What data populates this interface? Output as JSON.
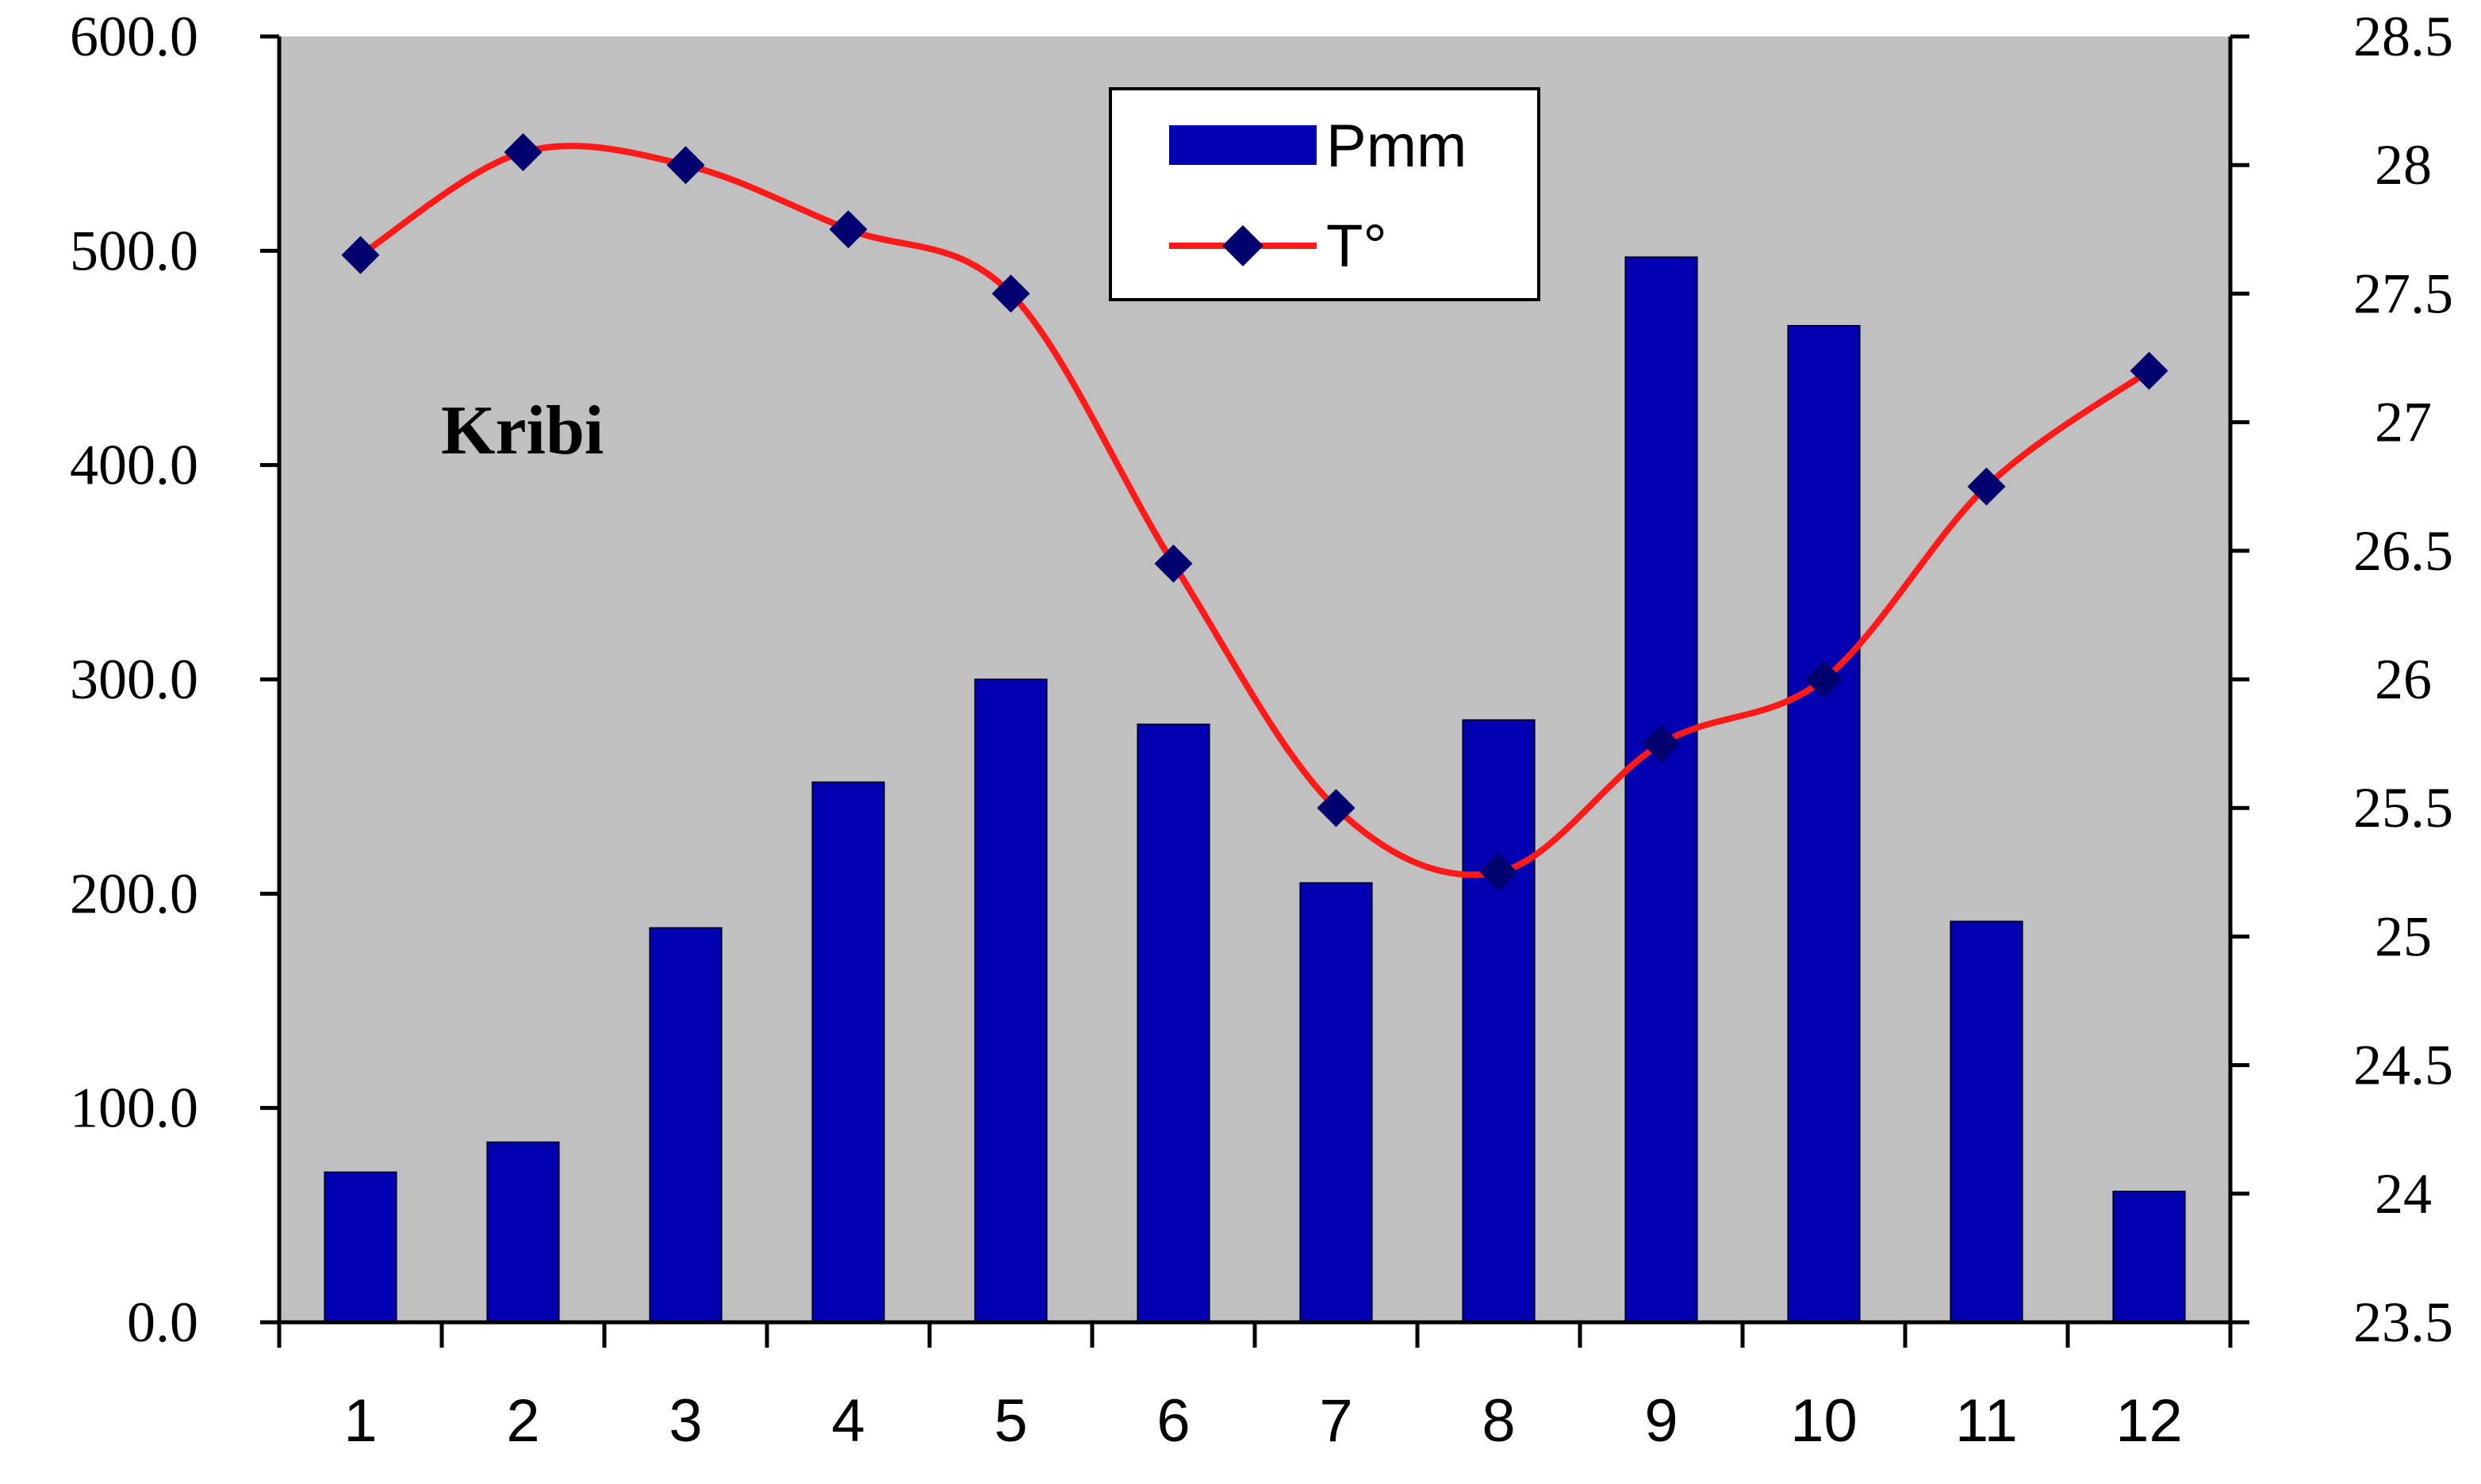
{
  "colors": {
    "plot_background": "#c0c0c0",
    "bar": "#0000b0",
    "line": "#ff1a1a",
    "marker": "#00006e",
    "axis": "#000000"
  },
  "chart_data": {
    "type": "bar",
    "categories": [
      "1",
      "2",
      "3",
      "4",
      "5",
      "6",
      "7",
      "8",
      "9",
      "10",
      "11",
      "12"
    ],
    "series": [
      {
        "name": "Pmm",
        "type": "bar",
        "axis": "left",
        "values": [
          70,
          84,
          184,
          252,
          300,
          279,
          205,
          281,
          497,
          465,
          187,
          61
        ]
      },
      {
        "name": "T°",
        "type": "line",
        "axis": "right",
        "values": [
          27.65,
          28.05,
          28.0,
          27.75,
          27.5,
          26.45,
          25.5,
          25.25,
          25.75,
          26.0,
          26.75,
          27.2
        ]
      }
    ],
    "y_left": {
      "lim": [
        0,
        600
      ],
      "ticks": [
        "0.0",
        "100.0",
        "200.0",
        "300.0",
        "400.0",
        "500.0",
        "600.0"
      ]
    },
    "y_right": {
      "lim": [
        23.5,
        28.5
      ],
      "ticks": [
        "23.5",
        "24",
        "24.5",
        "25",
        "25.5",
        "26",
        "26.5",
        "27",
        "27.5",
        "28",
        "28.5"
      ]
    },
    "annotation": "Kribi",
    "legend": {
      "placement": "top-center",
      "entries": [
        "Pmm",
        "T°"
      ]
    },
    "grid": false
  }
}
